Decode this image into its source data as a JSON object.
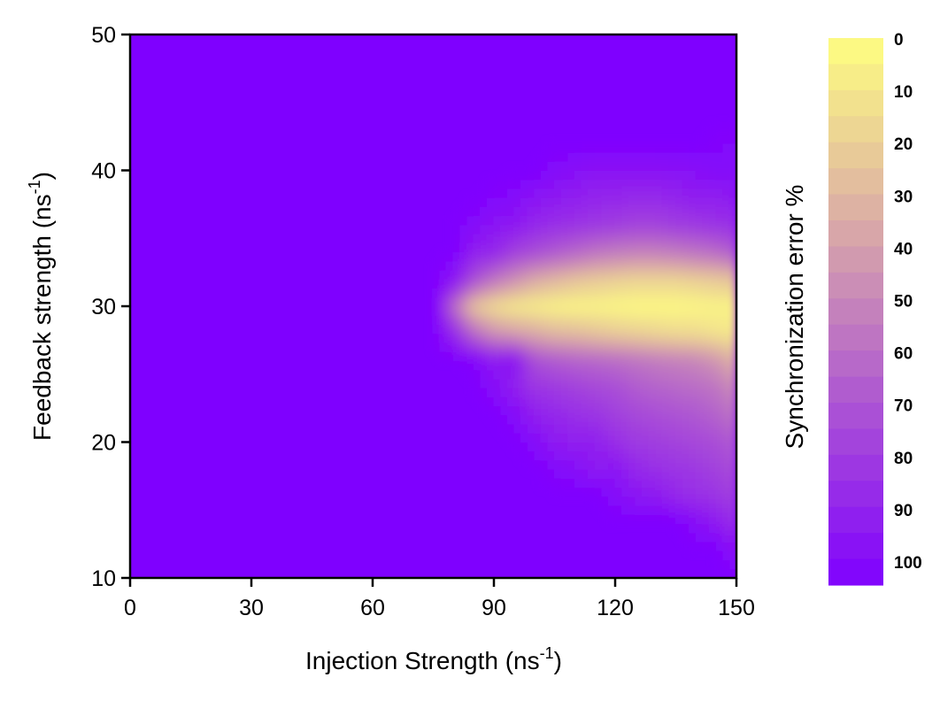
{
  "chart_data": {
    "type": "heatmap",
    "subtype": "filled-contour",
    "title": "",
    "xlabel": "Injection Strength (ns",
    "xlabel_sup": "-1",
    "xlabel_end": ")",
    "ylabel": "Feedback strength (ns",
    "ylabel_sup": "-1",
    "ylabel_end": ")",
    "xlim": [
      0,
      150
    ],
    "ylim": [
      10,
      50
    ],
    "xticks": [
      "0",
      "30",
      "60",
      "90",
      "120",
      "150"
    ],
    "yticks": [
      "10",
      "20",
      "30",
      "40",
      "50"
    ],
    "colorbar": {
      "label": "Synchronization error %",
      "range": [
        0,
        100
      ],
      "ticks": [
        "0",
        "10",
        "20",
        "30",
        "40",
        "50",
        "60",
        "70",
        "80",
        "90",
        "100"
      ],
      "color_low": "#ffff80",
      "color_mid": "#d9a8a8",
      "color_high": "#7f00ff"
    },
    "grid": false,
    "description_values": {
      "x": [
        75,
        80,
        85,
        90,
        95,
        100,
        105,
        110,
        115,
        120,
        125,
        130,
        135,
        140,
        145,
        150
      ],
      "y": [
        10,
        12,
        14,
        16,
        18,
        20,
        22,
        24,
        26,
        28,
        30,
        32,
        34,
        36,
        38,
        40,
        42,
        44
      ],
      "z": [
        [
          100,
          100,
          100,
          100,
          100,
          100,
          100,
          100,
          100,
          100,
          100,
          100,
          100,
          100,
          100,
          100
        ],
        [
          100,
          100,
          100,
          100,
          100,
          100,
          100,
          100,
          100,
          100,
          100,
          100,
          100,
          100,
          100,
          92
        ],
        [
          100,
          100,
          100,
          100,
          100,
          100,
          100,
          100,
          100,
          100,
          100,
          100,
          100,
          95,
          90,
          82
        ],
        [
          100,
          100,
          100,
          100,
          100,
          100,
          100,
          100,
          100,
          96,
          92,
          90,
          85,
          82,
          80,
          75
        ],
        [
          100,
          100,
          100,
          100,
          100,
          100,
          97,
          95,
          90,
          92,
          85,
          82,
          80,
          78,
          75,
          70
        ],
        [
          100,
          100,
          100,
          100,
          100,
          96,
          90,
          88,
          88,
          82,
          78,
          76,
          74,
          72,
          70,
          65
        ],
        [
          100,
          100,
          100,
          100,
          96,
          88,
          85,
          82,
          80,
          76,
          72,
          70,
          68,
          66,
          62,
          55
        ],
        [
          100,
          100,
          100,
          95,
          88,
          80,
          78,
          75,
          72,
          70,
          65,
          62,
          60,
          58,
          55,
          45
        ],
        [
          100,
          100,
          98,
          90,
          92,
          70,
          65,
          62,
          60,
          58,
          55,
          52,
          50,
          48,
          42,
          30
        ],
        [
          100,
          85,
          60,
          45,
          40,
          35,
          30,
          28,
          25,
          22,
          20,
          18,
          16,
          15,
          12,
          10
        ],
        [
          100,
          60,
          25,
          15,
          10,
          8,
          6,
          5,
          5,
          4,
          3,
          3,
          3,
          4,
          5,
          5
        ],
        [
          100,
          92,
          70,
          55,
          45,
          35,
          30,
          25,
          22,
          20,
          18,
          18,
          18,
          20,
          22,
          25
        ],
        [
          100,
          100,
          88,
          85,
          75,
          70,
          65,
          60,
          55,
          52,
          50,
          50,
          52,
          55,
          58,
          65
        ],
        [
          100,
          100,
          96,
          92,
          90,
          85,
          82,
          80,
          78,
          76,
          74,
          74,
          76,
          78,
          80,
          82
        ],
        [
          100,
          100,
          100,
          98,
          96,
          92,
          90,
          88,
          86,
          85,
          84,
          84,
          86,
          88,
          88,
          90
        ],
        [
          100,
          100,
          100,
          100,
          100,
          100,
          96,
          94,
          92,
          92,
          92,
          92,
          93,
          94,
          96,
          96
        ],
        [
          100,
          100,
          100,
          100,
          100,
          100,
          100,
          100,
          100,
          100,
          100,
          100,
          100,
          100,
          98,
          97
        ],
        [
          100,
          100,
          100,
          100,
          100,
          100,
          100,
          100,
          100,
          100,
          100,
          100,
          100,
          100,
          100,
          100
        ]
      ]
    }
  }
}
